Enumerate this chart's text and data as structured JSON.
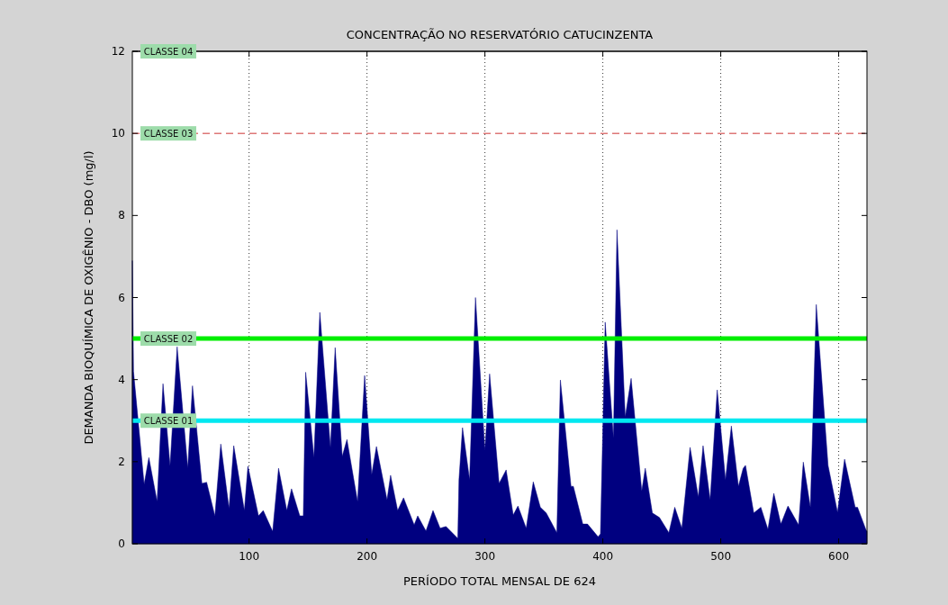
{
  "chart_data": {
    "type": "area",
    "title": "CONCENTRAÇÃO NO RESERVATÓRIO CATUCINZENTA",
    "xlabel": "PERÍODO TOTAL MENSAL DE 624",
    "ylabel": "DEMANDA BIOQUÍMICA DE OXIGÊNIO - DBO (mg/l)",
    "xlim": [
      1,
      624
    ],
    "ylim": [
      0,
      12
    ],
    "xticks": [
      100,
      200,
      300,
      400,
      500,
      600
    ],
    "yticks": [
      0,
      2,
      4,
      6,
      8,
      10,
      12
    ],
    "grid": "x",
    "series": [
      {
        "color": "#000080",
        "x": [
          1,
          2,
          11,
          15,
          22,
          27,
          33,
          39,
          48,
          52,
          60,
          64,
          71,
          76,
          83,
          87,
          96,
          99,
          108,
          112,
          120,
          125,
          132,
          136,
          143,
          146,
          148,
          155,
          160,
          169,
          173,
          179,
          183,
          192,
          198,
          204,
          208,
          217,
          220,
          226,
          231,
          240,
          243,
          250,
          256,
          262,
          267,
          277,
          278,
          281,
          287,
          292,
          300,
          304,
          312,
          318,
          324,
          328,
          335,
          341,
          347,
          352,
          361,
          364,
          373,
          375,
          383,
          387,
          396,
          398,
          402,
          409,
          412,
          419,
          424,
          433,
          436,
          442,
          448,
          456,
          461,
          467,
          474,
          481,
          485,
          491,
          497,
          504,
          509,
          515,
          519,
          521,
          528,
          534,
          540,
          545,
          551,
          557,
          566,
          570,
          576,
          581,
          591,
          599,
          605,
          614,
          616,
          623,
          624
        ],
        "values": [
          6.9,
          4.2,
          1.45,
          2.1,
          1.03,
          3.9,
          1.9,
          4.8,
          1.85,
          3.85,
          1.47,
          1.5,
          0.68,
          2.43,
          0.86,
          2.39,
          0.81,
          1.89,
          0.68,
          0.81,
          0.3,
          1.84,
          0.81,
          1.34,
          0.68,
          0.68,
          4.18,
          2.1,
          5.64,
          2.35,
          4.78,
          2.13,
          2.54,
          1.03,
          4.1,
          1.69,
          2.37,
          1.07,
          1.67,
          0.81,
          1.12,
          0.46,
          0.68,
          0.31,
          0.81,
          0.38,
          0.42,
          0.13,
          1.56,
          2.83,
          1.56,
          6.0,
          2.28,
          4.14,
          1.47,
          1.8,
          0.7,
          0.92,
          0.38,
          1.51,
          0.89,
          0.75,
          0.27,
          3.99,
          1.4,
          1.4,
          0.48,
          0.48,
          0.17,
          0.24,
          5.4,
          2.57,
          7.65,
          3.09,
          4.03,
          1.29,
          1.84,
          0.75,
          0.64,
          0.27,
          0.89,
          0.38,
          2.35,
          1.14,
          2.39,
          1.07,
          3.75,
          1.56,
          2.87,
          1.4,
          1.84,
          1.91,
          0.75,
          0.89,
          0.35,
          1.23,
          0.48,
          0.92,
          0.46,
          1.99,
          0.89,
          5.83,
          1.91,
          0.77,
          2.06,
          0.89,
          0.89,
          0.35,
          0.3
        ]
      }
    ],
    "ref_lines": [
      {
        "axis": "y",
        "value": 12,
        "label": "CLASSE 04",
        "color": "#000000",
        "line_style": "solid"
      },
      {
        "axis": "y",
        "value": 10,
        "label": "CLASSE 03",
        "color": "#cc3333",
        "line_style": "dashed"
      },
      {
        "axis": "y",
        "value": 5,
        "label": "CLASSE 02",
        "color": "#00ee00",
        "line_style": "solid"
      },
      {
        "axis": "y",
        "value": 3,
        "label": "CLASSE 01",
        "color": "#00e8f0",
        "line_style": "solid"
      }
    ]
  }
}
